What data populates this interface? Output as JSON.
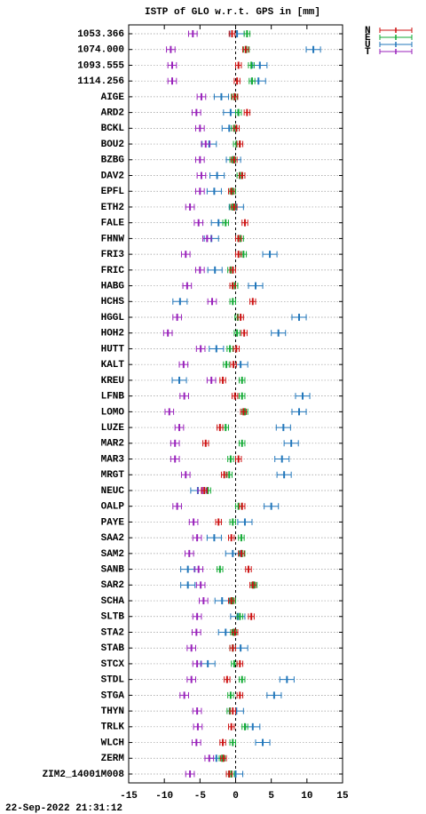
{
  "chart_data": {
    "type": "errorbar",
    "title": "ISTP of GLO w.r.t. GPS in [mm]",
    "footer": "22-Sep-2022 21:31:12",
    "categories": [
      "1053.366",
      "1074.000",
      "1093.555",
      "1114.256",
      "AIGE",
      "ARD2",
      "BCKL",
      "BOU2",
      "BZBG",
      "DAV2",
      "EPFL",
      "ETH2",
      "FALE",
      "FHNW",
      "FRI3",
      "FRIC",
      "HABG",
      "HCHS",
      "HGGL",
      "HOH2",
      "HUTT",
      "KALT",
      "KREU",
      "LFNB",
      "LOMO",
      "LUZE",
      "MAR2",
      "MAR3",
      "MRGT",
      "NEUC",
      "OALP",
      "PAYE",
      "SAA2",
      "SAM2",
      "SANB",
      "SAR2",
      "SCHA",
      "SLTB",
      "STA2",
      "STAB",
      "STCX",
      "STDL",
      "STGA",
      "THYN",
      "TRLK",
      "WLCH",
      "ZERM",
      "ZIM2_14001M008"
    ],
    "series": [
      {
        "name": "N",
        "color": "#cc1111",
        "error": 0.4,
        "values": [
          -0.5,
          1.4,
          0.4,
          0.2,
          -0.1,
          1.6,
          0.1,
          0.6,
          -0.2,
          0.9,
          -0.6,
          -0.2,
          1.3,
          0.4,
          0.4,
          -0.4,
          -0.4,
          2.4,
          0.7,
          1.2,
          0.1,
          -0.3,
          -1.8,
          -0.1,
          1.1,
          -2.2,
          -4.2,
          0.4,
          -1.6,
          -4.4,
          0.9,
          -2.4,
          -0.6,
          0.8,
          1.8,
          2.4,
          -0.6,
          2.2,
          -0.1,
          -0.4,
          0.6,
          -1.2,
          0.6,
          -0.4,
          -0.6,
          -1.8,
          -1.7,
          -0.9
        ]
      },
      {
        "name": "E",
        "color": "#11aa33",
        "error": 0.4,
        "values": [
          1.6,
          1.5,
          2.2,
          2.3,
          -0.2,
          0.4,
          -0.2,
          0.1,
          -0.4,
          0.6,
          -0.4,
          -0.4,
          -1.4,
          0.7,
          1.1,
          -0.7,
          -0.1,
          -0.4,
          0.3,
          0.2,
          -0.8,
          -1.3,
          0.9,
          0.9,
          1.3,
          -1.4,
          0.9,
          -0.7,
          -0.9,
          -3.9,
          0.4,
          -0.4,
          0.8,
          0.9,
          -2.2,
          2.6,
          -0.4,
          0.6,
          -0.3,
          -0.4,
          -0.2,
          0.9,
          -0.7,
          -0.8,
          1.3,
          -0.4,
          -1.9,
          -0.6
        ]
      },
      {
        "name": "U",
        "color": "#2277bb",
        "error": 1.0,
        "values": [
          0.2,
          10.9,
          3.4,
          3.2,
          -2.0,
          -0.7,
          -0.9,
          -3.7,
          -0.3,
          -2.6,
          -3.0,
          0.1,
          -2.4,
          -3.4,
          4.8,
          -2.9,
          2.8,
          -7.8,
          8.9,
          6.0,
          -2.7,
          0.7,
          -7.9,
          9.4,
          8.9,
          6.7,
          7.8,
          6.5,
          6.8,
          -5.3,
          5.0,
          1.3,
          -3.0,
          -0.4,
          -6.7,
          -6.7,
          -1.9,
          0.3,
          -1.4,
          0.7,
          -3.9,
          7.2,
          5.4,
          0.1,
          2.4,
          3.8,
          -2.7,
          0.0
        ]
      },
      {
        "name": "T",
        "color": "#9922bb",
        "error": 0.6,
        "values": [
          -6.0,
          -9.1,
          -8.9,
          -8.9,
          -4.8,
          -5.5,
          -5.0,
          -4.2,
          -5.0,
          -4.8,
          -5.0,
          -6.4,
          -5.2,
          -4.0,
          -7.0,
          -5.0,
          -6.8,
          -3.3,
          -8.2,
          -9.5,
          -4.9,
          -7.3,
          -3.4,
          -7.2,
          -9.3,
          -7.9,
          -8.5,
          -8.5,
          -7.0,
          -4.7,
          -8.2,
          -5.9,
          -5.4,
          -6.5,
          -5.2,
          -4.9,
          -4.5,
          -5.4,
          -5.5,
          -6.2,
          -5.4,
          -6.2,
          -7.2,
          -5.4,
          -5.3,
          -5.5,
          -3.7,
          -6.4
        ]
      }
    ],
    "xlim": [
      -15,
      15
    ],
    "xticks": [
      -15,
      -10,
      -5,
      0,
      5,
      10,
      15
    ],
    "grid": true,
    "legend": "top-right"
  }
}
